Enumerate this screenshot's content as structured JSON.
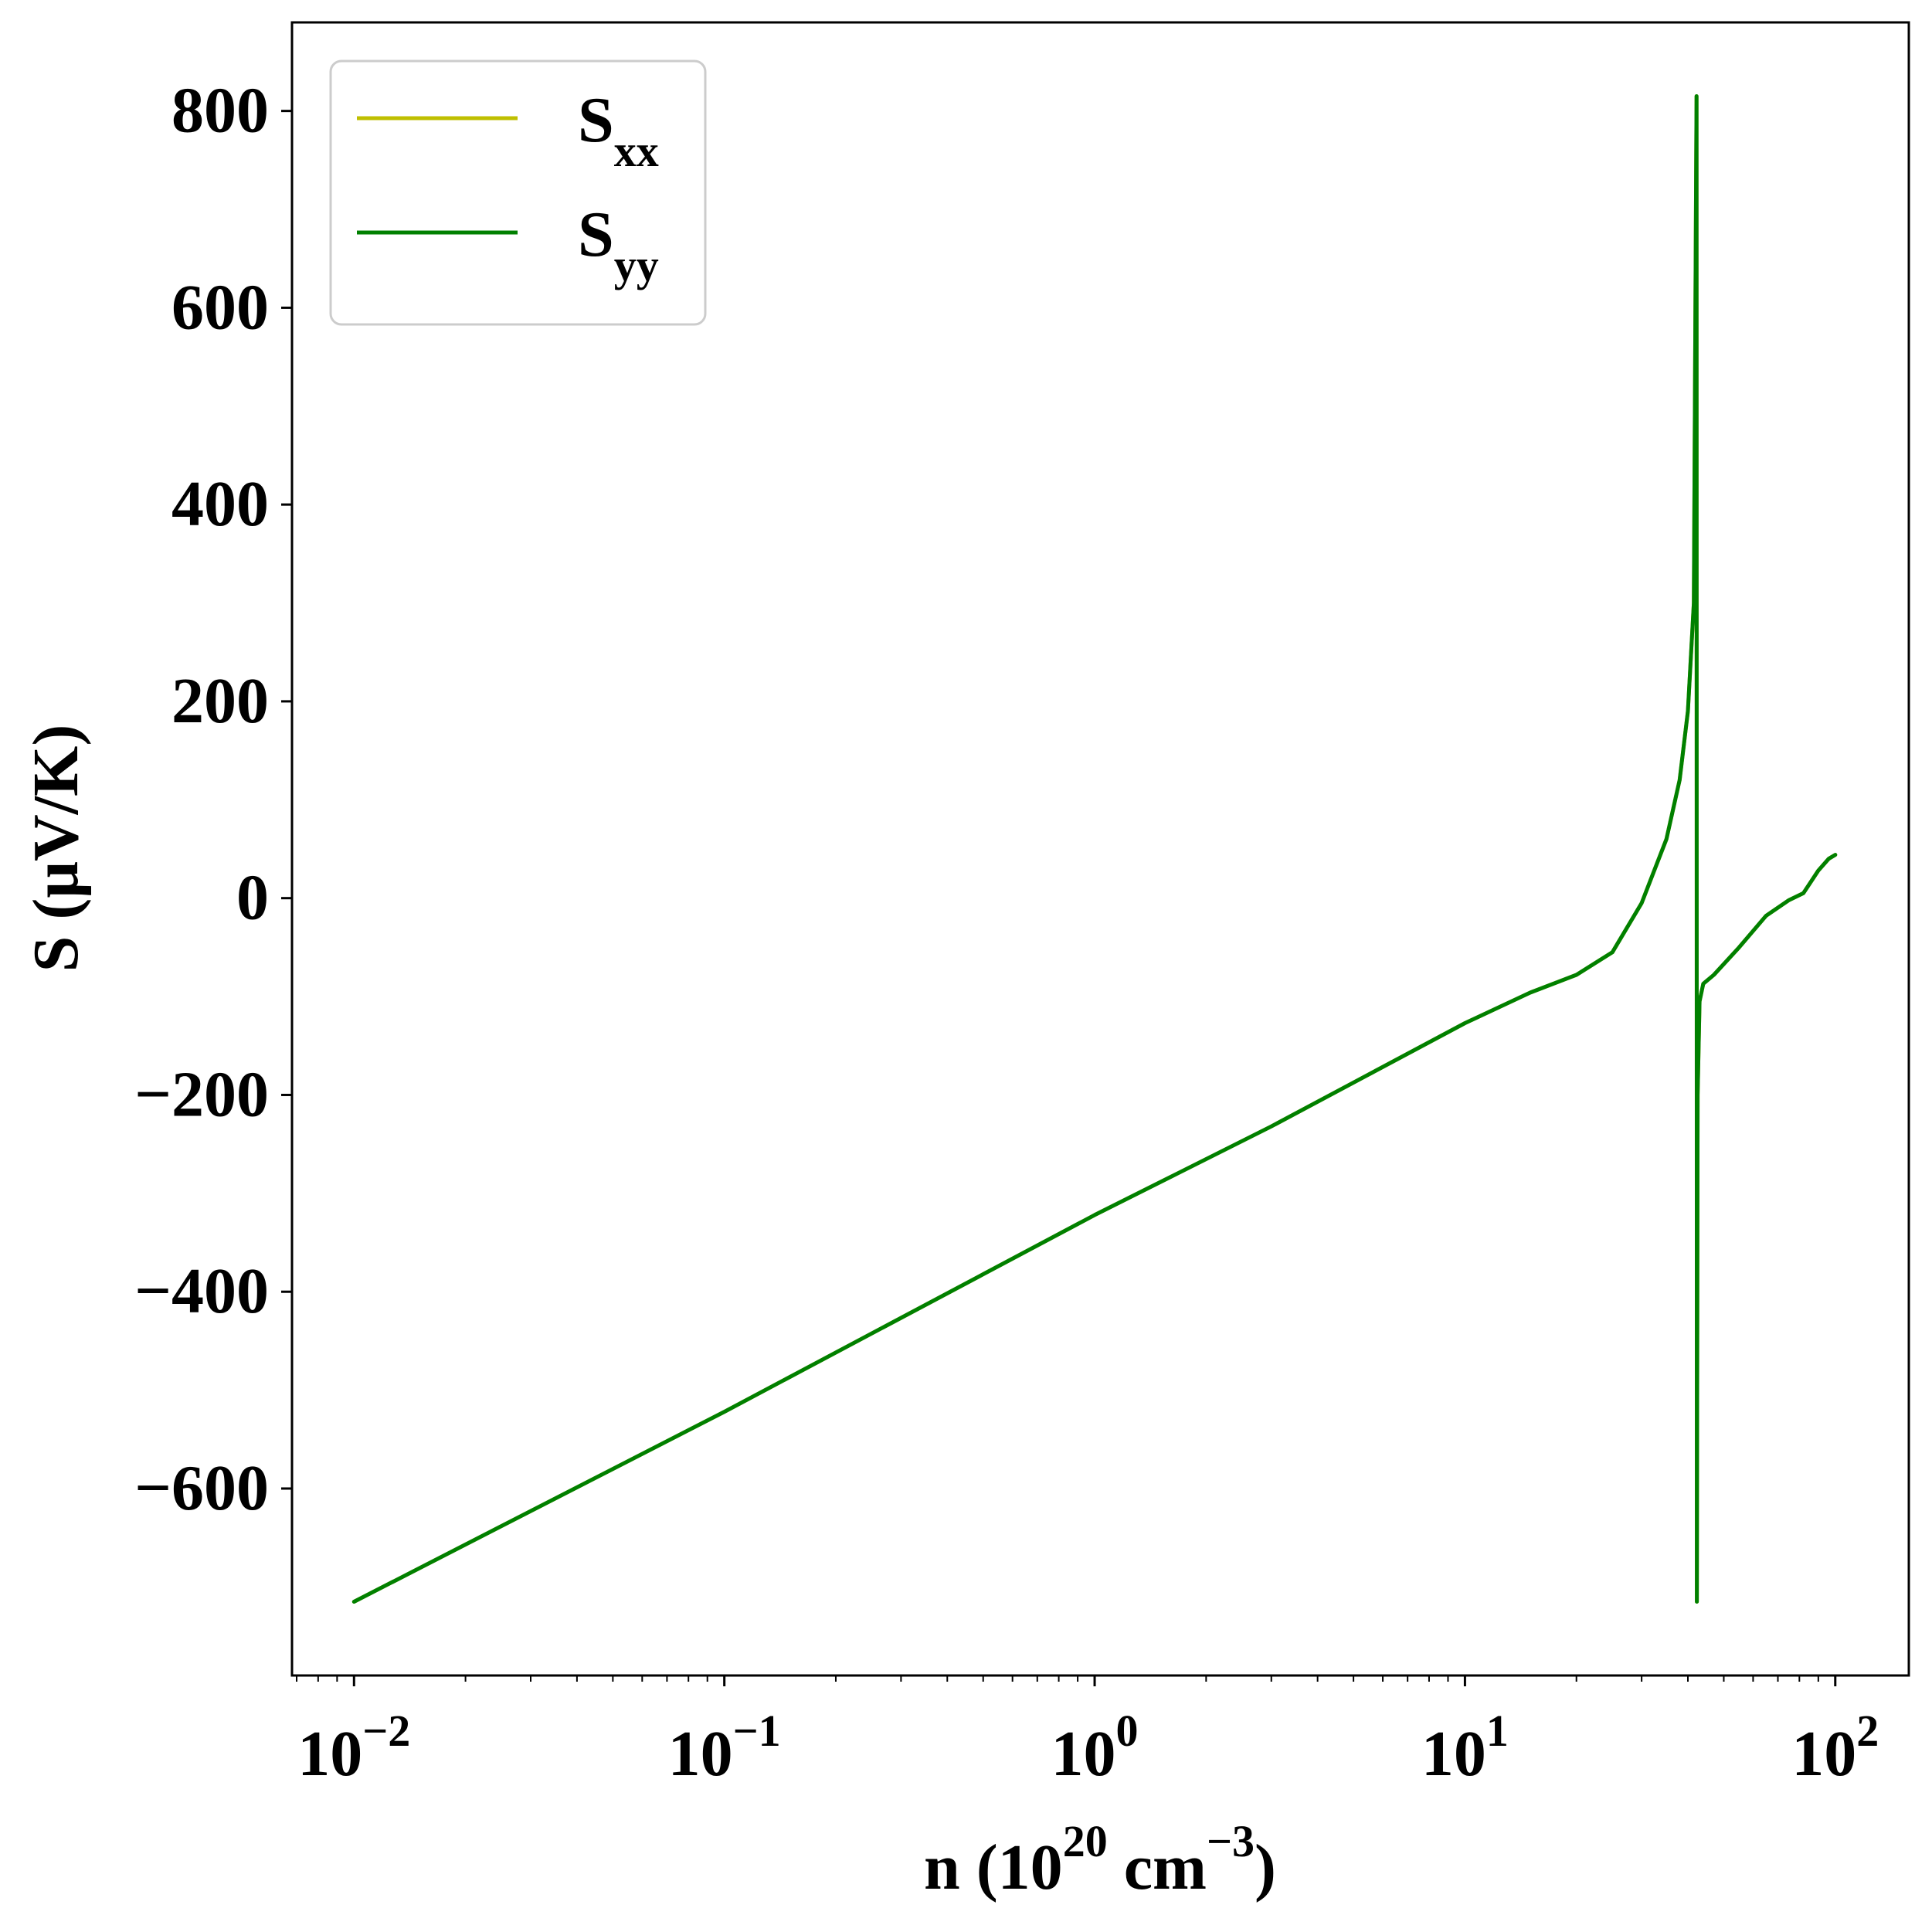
{
  "chart_data": {
    "type": "line",
    "xscale": "log",
    "xlim": [
      0.0068,
      158
    ],
    "ylim": [
      -790,
      890
    ],
    "x_ticks": [
      {
        "value": 0.01,
        "base": "10",
        "exp": "−2"
      },
      {
        "value": 0.1,
        "base": "10",
        "exp": "−1"
      },
      {
        "value": 1,
        "base": "10",
        "exp": "0"
      },
      {
        "value": 10,
        "base": "10",
        "exp": "1"
      },
      {
        "value": 100,
        "base": "10",
        "exp": "2"
      }
    ],
    "y_ticks": [
      {
        "value": 800,
        "label": "800"
      },
      {
        "value": 600,
        "label": "600"
      },
      {
        "value": 400,
        "label": "400"
      },
      {
        "value": 200,
        "label": "200"
      },
      {
        "value": 0,
        "label": "0"
      },
      {
        "value": -200,
        "label": "−200"
      },
      {
        "value": -400,
        "label": "−400"
      },
      {
        "value": -600,
        "label": "−600"
      }
    ],
    "xlabel": {
      "prefix": "n (10",
      "sup1": "20",
      "mid": " cm",
      "sup2": "−3",
      "suffix": ")"
    },
    "ylabel": "S (μV/K)",
    "legend": {
      "position": "upper-left",
      "entries": [
        {
          "symbol": "S",
          "sub": "xx",
          "color": "#bfbf00"
        },
        {
          "symbol": "S",
          "sub": "yy",
          "color": "#008000"
        }
      ]
    },
    "series": [
      {
        "name": "S_xx",
        "color": "#bfbf00",
        "points": [
          [
            0.01,
            -715
          ],
          [
            0.1,
            -522
          ],
          [
            1,
            -322
          ],
          [
            3,
            -232
          ],
          [
            10,
            -127
          ],
          [
            15,
            -96
          ],
          [
            20,
            -78
          ],
          [
            25,
            -55
          ],
          [
            30,
            -5
          ],
          [
            35,
            60
          ],
          [
            38,
            120
          ],
          [
            40,
            190
          ],
          [
            41.5,
            300
          ],
          [
            42.2,
            815
          ],
          [
            42.3,
            -715
          ],
          [
            42.5,
            -200
          ],
          [
            43,
            -105
          ],
          [
            44,
            -87
          ],
          [
            47,
            -78
          ],
          [
            55,
            -50
          ],
          [
            65,
            -18
          ],
          [
            75,
            -2
          ],
          [
            82,
            5
          ],
          [
            90,
            28
          ],
          [
            96,
            40
          ],
          [
            100,
            44
          ]
        ]
      },
      {
        "name": "S_yy",
        "color": "#008000",
        "points": [
          [
            0.01,
            -715
          ],
          [
            0.1,
            -522
          ],
          [
            1,
            -322
          ],
          [
            3,
            -232
          ],
          [
            10,
            -127
          ],
          [
            15,
            -96
          ],
          [
            20,
            -78
          ],
          [
            25,
            -55
          ],
          [
            30,
            -5
          ],
          [
            35,
            60
          ],
          [
            38,
            120
          ],
          [
            40,
            190
          ],
          [
            41.5,
            300
          ],
          [
            42.2,
            815
          ],
          [
            42.3,
            -715
          ],
          [
            42.5,
            -200
          ],
          [
            43,
            -105
          ],
          [
            44,
            -87
          ],
          [
            47,
            -78
          ],
          [
            55,
            -50
          ],
          [
            65,
            -18
          ],
          [
            75,
            -2
          ],
          [
            82,
            5
          ],
          [
            90,
            28
          ],
          [
            96,
            40
          ],
          [
            100,
            44
          ]
        ]
      }
    ]
  }
}
